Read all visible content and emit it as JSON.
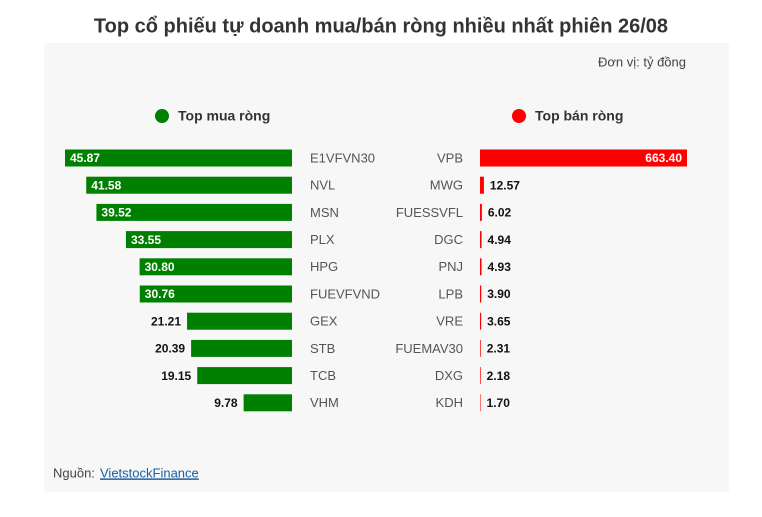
{
  "title": "Top cổ phiếu tự doanh mua/bán ròng nhiều nhất phiên 26/08",
  "unit": "Đơn vị: tỷ đồng",
  "source": {
    "label": "Nguồn:",
    "link": "VietstockFinance"
  },
  "chart_data": [
    {
      "type": "bar",
      "categories": [
        "E1VFVN30",
        "NVL",
        "MSN",
        "PLX",
        "HPG",
        "FUEVFVND",
        "GEX",
        "STB",
        "TCB",
        "VHM"
      ],
      "series": [
        {
          "name": "Top mua ròng",
          "color": "#008000",
          "values": [
            45.87,
            41.58,
            39.52,
            33.55,
            30.8,
            30.76,
            21.21,
            20.39,
            19.15,
            9.78
          ],
          "value_labels": [
            "45.87",
            "41.58",
            "39.52",
            "33.55",
            "30.80",
            "30.76",
            "21.21",
            "20.39",
            "19.15",
            "9.78"
          ]
        }
      ]
    },
    {
      "type": "bar",
      "categories": [
        "VPB",
        "MWG",
        "FUESSVFL",
        "DGC",
        "PNJ",
        "LPB",
        "VRE",
        "FUEMAV30",
        "DXG",
        "KDH"
      ],
      "series": [
        {
          "name": "Top bán ròng",
          "color": "#ff0000",
          "values": [
            663.4,
            12.57,
            6.02,
            4.94,
            4.93,
            3.9,
            3.65,
            2.31,
            2.18,
            1.7
          ],
          "value_labels": [
            "663.40",
            "12.57",
            "6.02",
            "4.94",
            "4.93",
            "3.90",
            "3.65",
            "2.31",
            "2.18",
            "1.70"
          ]
        }
      ]
    }
  ]
}
